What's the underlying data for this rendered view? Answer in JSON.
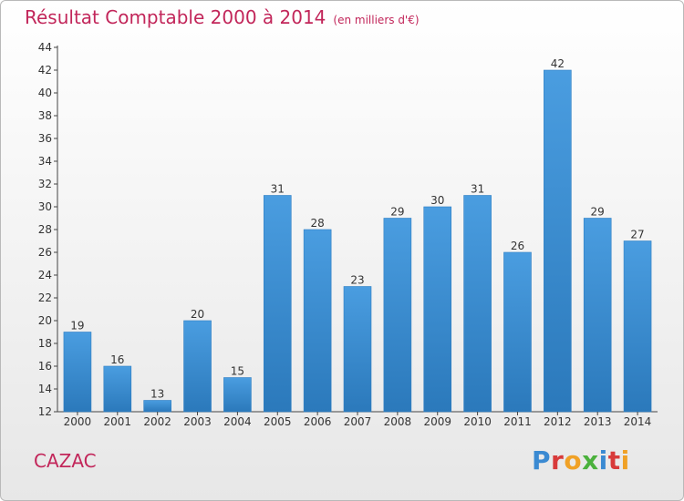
{
  "title": "Résultat Comptable 2000 à 2014",
  "unit": "(en milliers d'€)",
  "city": "CAZAC",
  "logo": {
    "text": "Proxiti",
    "letters": [
      "P",
      "r",
      "o",
      "x",
      "i",
      "t",
      "i"
    ],
    "colors": [
      "#3a8ad2",
      "#d83a3a",
      "#f0a126",
      "#4bb13c",
      "#3a8ad2",
      "#d83a3a",
      "#f0a126"
    ]
  },
  "colors": {
    "bar": "#4a9de0",
    "bar_dark": "#2b79bb",
    "title": "#c2265a"
  },
  "chart_data": {
    "type": "bar",
    "title": "Résultat Comptable 2000 à 2014",
    "xlabel": "",
    "ylabel": "",
    "categories": [
      "2000",
      "2001",
      "2002",
      "2003",
      "2004",
      "2005",
      "2006",
      "2007",
      "2008",
      "2009",
      "2010",
      "2011",
      "2012",
      "2013",
      "2014"
    ],
    "values": [
      19,
      16,
      13,
      20,
      15,
      31,
      28,
      23,
      29,
      30,
      31,
      26,
      42,
      29,
      27
    ],
    "ylim": [
      12,
      44
    ],
    "yticks": [
      12,
      14,
      16,
      18,
      20,
      22,
      24,
      26,
      28,
      30,
      32,
      34,
      36,
      38,
      40,
      42,
      44
    ],
    "grid": false,
    "legend": "none"
  }
}
